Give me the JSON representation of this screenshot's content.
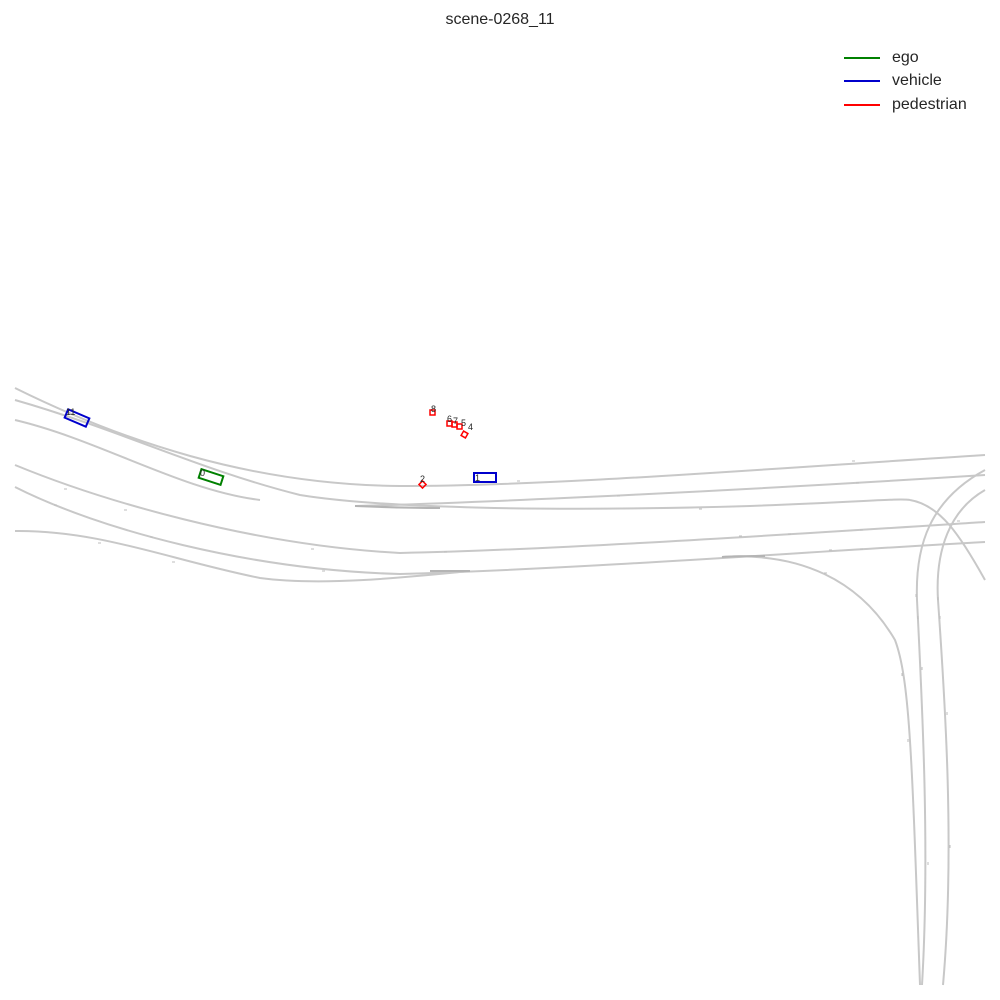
{
  "title": "scene-0268_11",
  "legend": [
    {
      "label": "ego",
      "color": "#008000"
    },
    {
      "label": "vehicle",
      "color": "#0000cc"
    },
    {
      "label": "pedestrian",
      "color": "#ff0000"
    }
  ],
  "agents": [
    {
      "id": "0",
      "type": "ego",
      "color": "#008000"
    },
    {
      "id": "1",
      "type": "vehicle",
      "color": "#0000cc"
    },
    {
      "id": "11",
      "type": "vehicle",
      "color": "#0000cc"
    },
    {
      "id": "2",
      "type": "pedestrian",
      "color": "#ff0000"
    },
    {
      "id": "4",
      "type": "pedestrian",
      "color": "#ff0000"
    },
    {
      "id": "5",
      "type": "pedestrian",
      "color": "#ff0000"
    },
    {
      "id": "6",
      "type": "pedestrian",
      "color": "#ff0000"
    },
    {
      "id": "7",
      "type": "pedestrian",
      "color": "#ff0000"
    },
    {
      "id": "8",
      "type": "pedestrian",
      "color": "#ff0000"
    }
  ]
}
